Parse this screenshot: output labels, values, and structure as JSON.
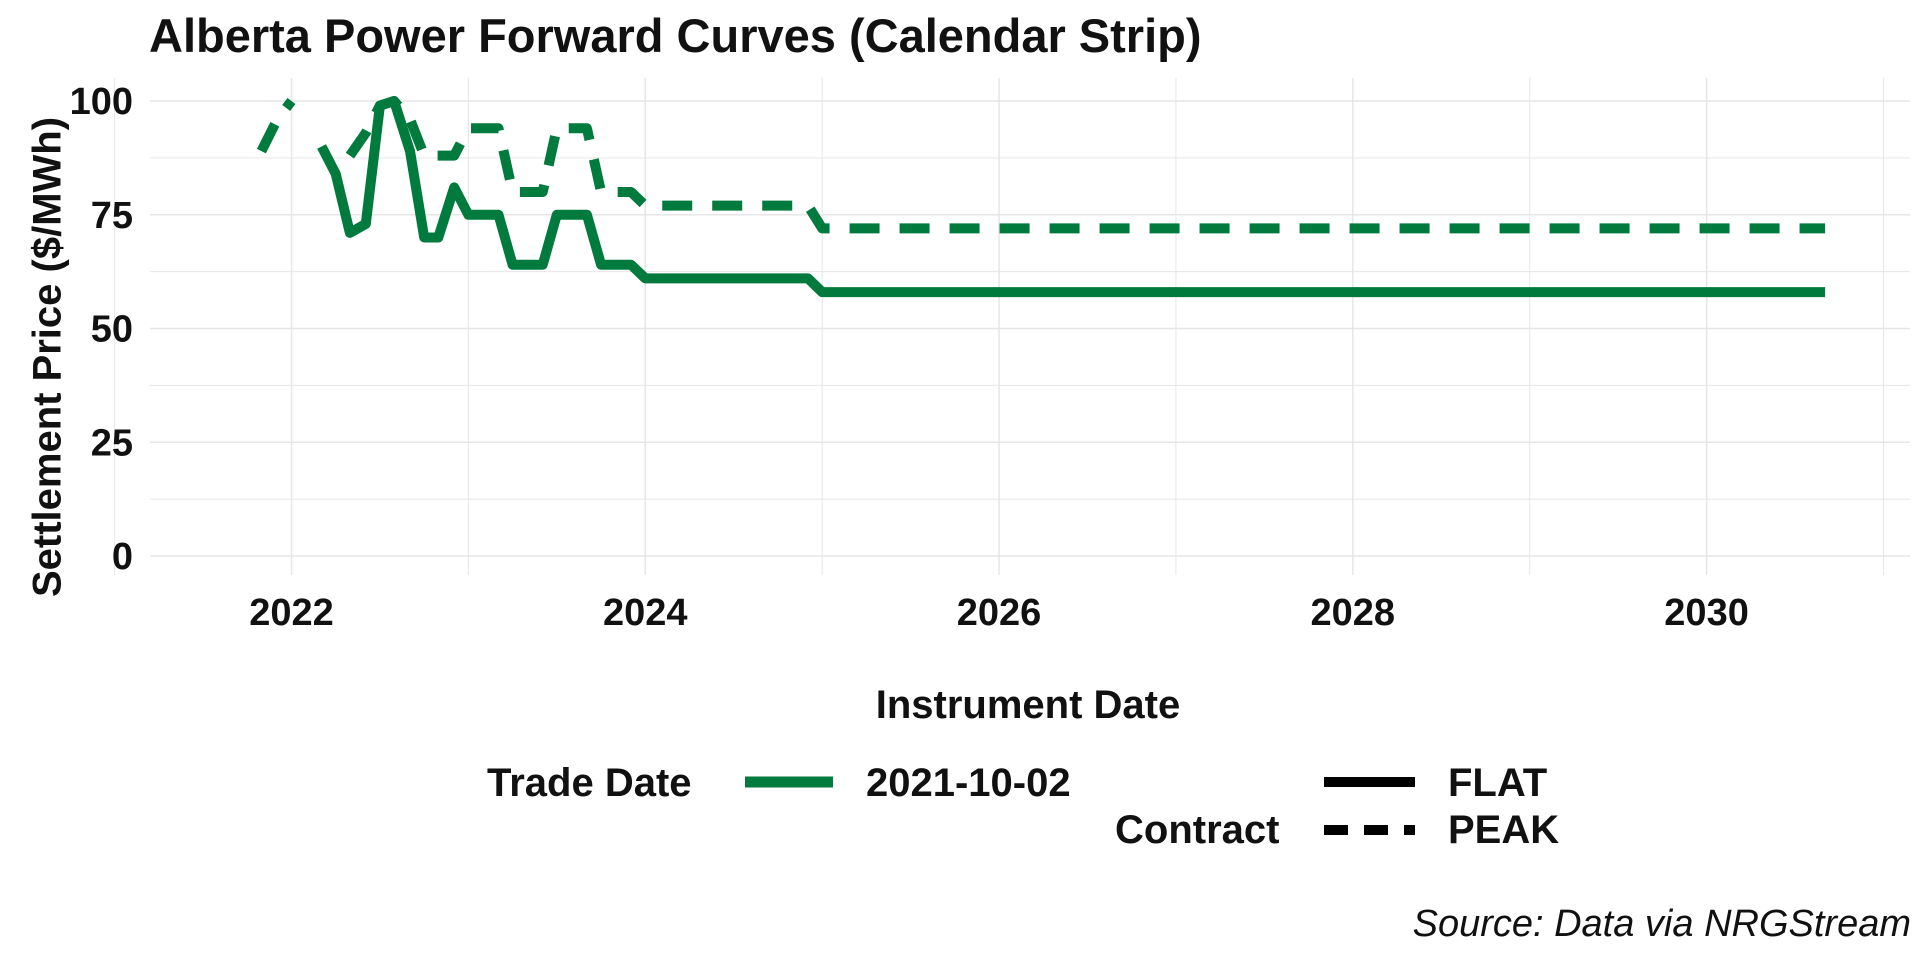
{
  "chart_data": {
    "type": "line",
    "title": "Alberta Power Forward Curves (Calendar Strip)",
    "xlabel": "Instrument Date",
    "ylabel": "Settlement Price ($/MWh)",
    "source": "Source: Data via NRGStream",
    "ylim": [
      0,
      100
    ],
    "xlim": [
      2021.2,
      2031.15
    ],
    "y_ticks": [
      0,
      25,
      50,
      75,
      100
    ],
    "x_ticks": [
      2022,
      2024,
      2026,
      2028,
      2030
    ],
    "x_tick_labels": [
      "2022",
      "2024",
      "2026",
      "2028",
      "2030"
    ],
    "line_color": "#007a3d",
    "grid_color": "#e6e6e6",
    "legend": {
      "trade_date_title": "Trade Date",
      "trade_date_value": "2021-10-02",
      "contract_title": "Contract",
      "contract_flat": "FLAT",
      "contract_peak": "PEAK",
      "placement": "bottom"
    },
    "series": [
      {
        "name": "FLAT",
        "trade_date": "2021-10-02",
        "style": "solid",
        "x": [
          2022.08,
          2022.17,
          2022.25,
          2022.33,
          2022.42,
          2022.5,
          2022.58,
          2022.67,
          2022.75,
          2022.83,
          2022.92,
          2023.0,
          2023.08,
          2023.17,
          2023.25,
          2023.33,
          2023.42,
          2023.5,
          2023.58,
          2023.67,
          2023.75,
          2023.83,
          2023.92,
          2024.0,
          2024.5,
          2024.92,
          2025.0,
          2026.0,
          2027.0,
          2028.0,
          2029.0,
          2030.0,
          2030.67
        ],
        "y": [
          null,
          90,
          84,
          71,
          73,
          99,
          100,
          89,
          70,
          70,
          81,
          75,
          75,
          75,
          64,
          64,
          64,
          75,
          75,
          75,
          64,
          64,
          64,
          61,
          61,
          61,
          58,
          58,
          58,
          58,
          58,
          58,
          58
        ]
      },
      {
        "name": "PEAK",
        "trade_date": "2021-10-02",
        "style": "dashed",
        "x": [
          2021.83,
          2021.92,
          2022.0,
          2022.08,
          2022.17,
          2022.25,
          2022.33,
          2022.42,
          2022.5,
          2022.58,
          2022.67,
          2022.75,
          2022.83,
          2022.92,
          2023.0,
          2023.08,
          2023.17,
          2023.25,
          2023.33,
          2023.42,
          2023.5,
          2023.58,
          2023.67,
          2023.75,
          2023.83,
          2023.92,
          2024.0,
          2024.5,
          2024.92,
          2025.0,
          2026.0,
          2027.0,
          2028.0,
          2029.0,
          2030.0,
          2030.67
        ],
        "y": [
          89,
          96,
          100,
          null,
          null,
          null,
          88,
          93,
          99,
          100,
          96,
          88,
          88,
          88,
          94,
          94,
          94,
          80,
          80,
          80,
          94,
          94,
          94,
          80,
          80,
          80,
          77,
          77,
          77,
          72,
          72,
          72,
          72,
          72,
          72,
          72
        ]
      }
    ]
  }
}
